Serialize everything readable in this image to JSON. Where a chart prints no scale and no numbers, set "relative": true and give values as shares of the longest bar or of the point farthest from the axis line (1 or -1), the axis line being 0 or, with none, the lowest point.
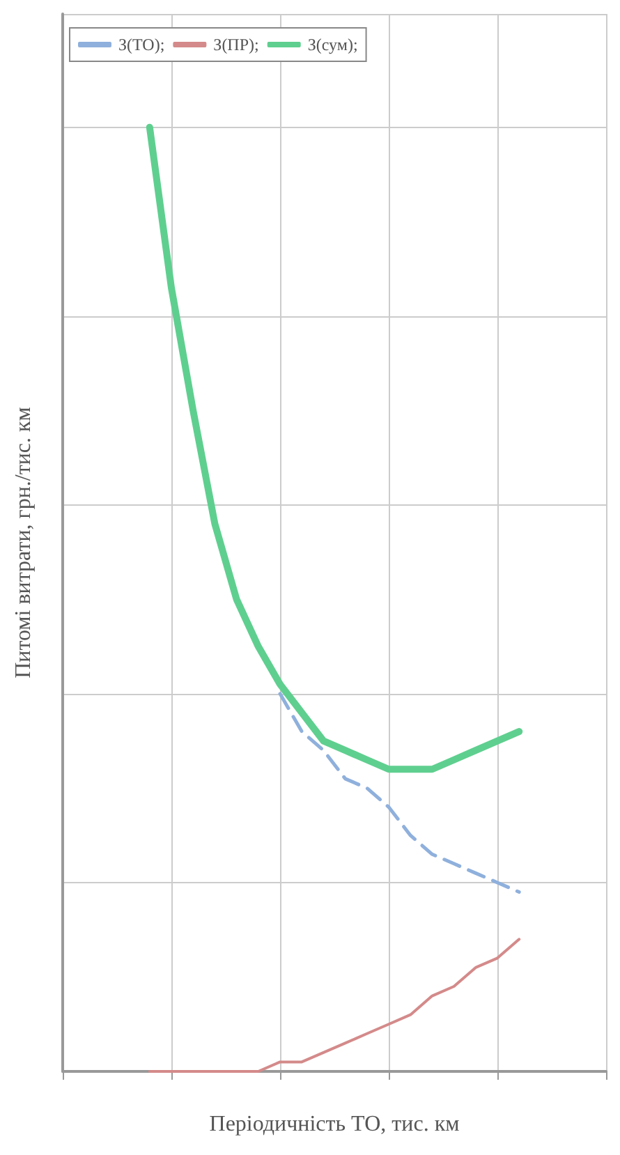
{
  "chart_data": {
    "type": "line",
    "relative": true,
    "xlabel": "Періодичність ТО, тис. км",
    "ylabel": "Питомі витрати, грн./тис. км",
    "categories": [
      null,
      null,
      null,
      null,
      null,
      null,
      null,
      null,
      null,
      null,
      null,
      null,
      null,
      null,
      null,
      null,
      null,
      null,
      null,
      null,
      null,
      null,
      null,
      null,
      null,
      null
    ],
    "grid": true,
    "legend": "top left",
    "marker": "none",
    "series": [
      {
        "name": "З(ТО);",
        "color": "#8fb0dc",
        "line_style": "dashed",
        "values": [
          null,
          null,
          null,
          null,
          null,
          null,
          null,
          null,
          null,
          null,
          0.4,
          0.36,
          0.34,
          0.31,
          0.3,
          0.28,
          0.25,
          0.23,
          0.22,
          0.21,
          0.2,
          0.19,
          null,
          null,
          null,
          null
        ]
      },
      {
        "name": "З(ПР);",
        "color": "#d48a8a",
        "line_style": "solid",
        "values": [
          null,
          null,
          null,
          null,
          0.0,
          0.0,
          0.0,
          0.0,
          0.0,
          0.0,
          0.01,
          0.01,
          0.02,
          0.03,
          0.04,
          0.05,
          0.06,
          0.08,
          0.09,
          0.11,
          0.12,
          0.14,
          null,
          null,
          null,
          null
        ]
      },
      {
        "name": "З(сум);",
        "color": "#5fcf8f",
        "line_style": "solid",
        "values": [
          null,
          null,
          null,
          null,
          1.0,
          0.83,
          0.7,
          0.58,
          0.5,
          0.45,
          0.41,
          0.38,
          0.35,
          0.34,
          0.33,
          0.32,
          0.32,
          0.32,
          0.33,
          0.34,
          0.35,
          0.36,
          null,
          null,
          null,
          null
        ]
      }
    ]
  }
}
